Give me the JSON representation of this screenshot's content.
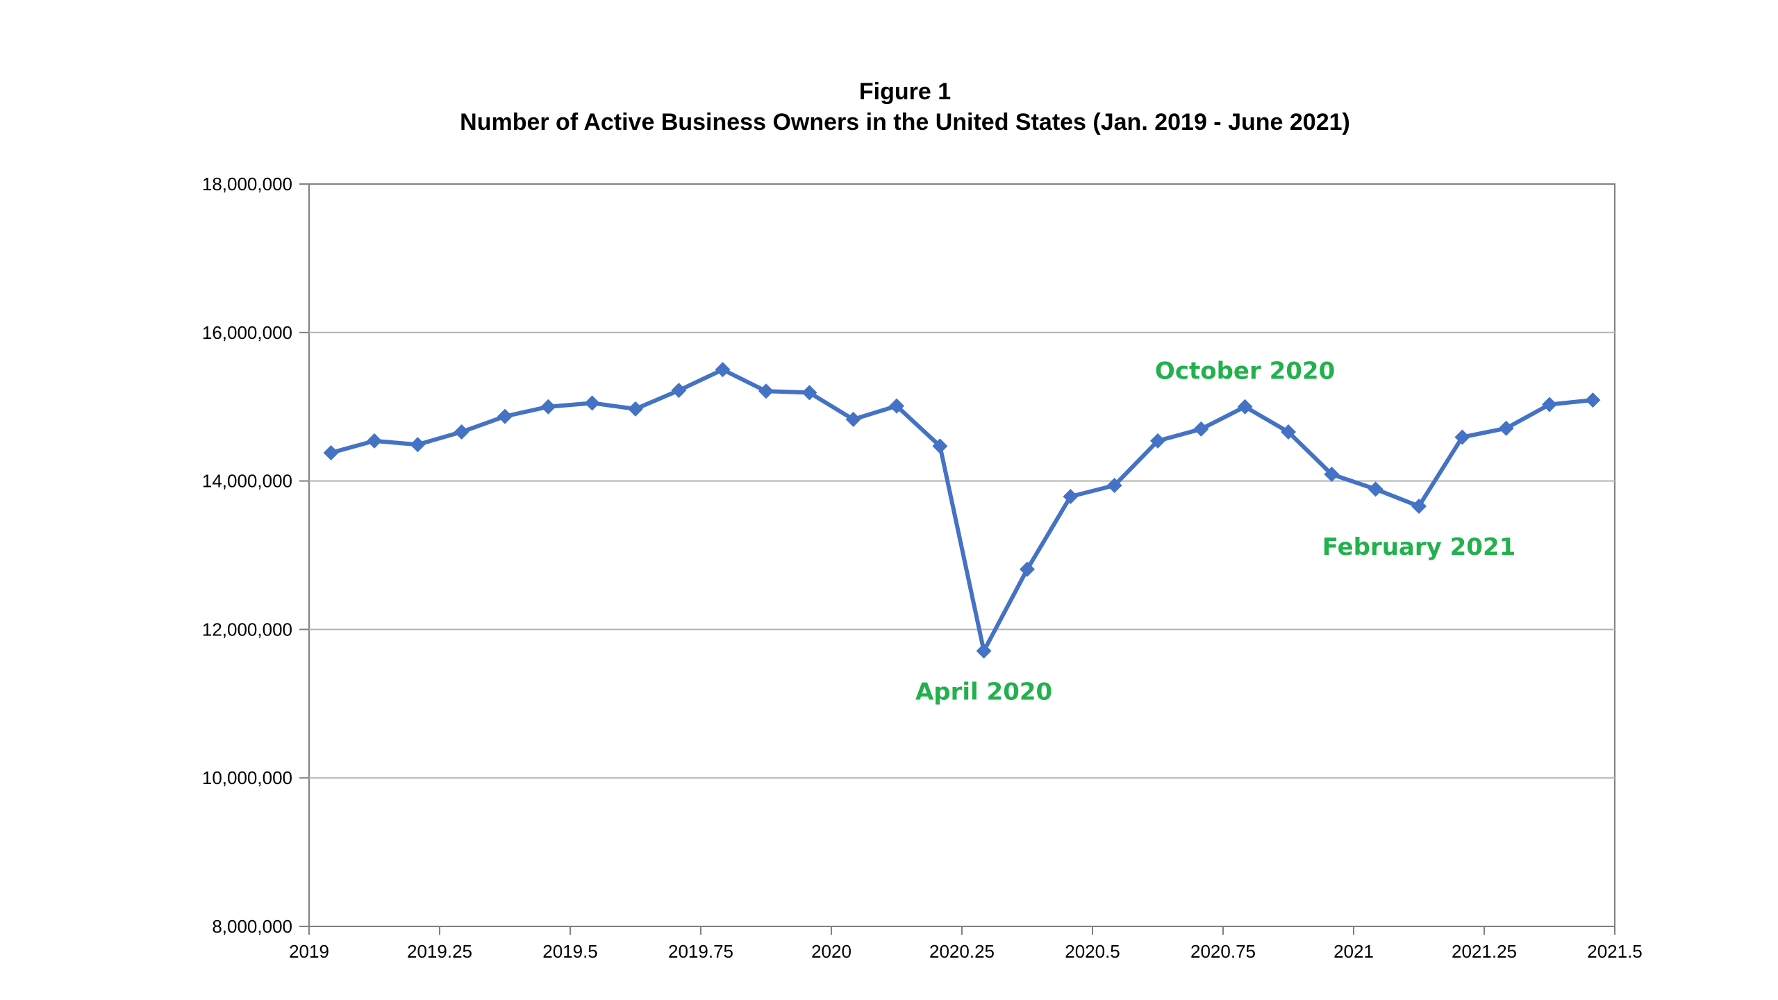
{
  "chart_data": {
    "type": "line",
    "title": "Figure 1",
    "subtitle": "Number of Active Business Owners in the United States (Jan. 2019 - June 2021)",
    "xlabel": "",
    "ylabel": "",
    "xlim": [
      2019,
      2021.5
    ],
    "ylim": [
      8000000,
      18000000
    ],
    "x_ticks": [
      2019,
      2019.25,
      2019.5,
      2019.75,
      2020,
      2020.25,
      2020.5,
      2020.75,
      2021,
      2021.25,
      2021.5
    ],
    "x_tick_labels": [
      "2019",
      "2019.25",
      "2019.5",
      "2019.75",
      "2020",
      "2020.25",
      "2020.5",
      "2020.75",
      "2021",
      "2021.25",
      "2021.5"
    ],
    "y_ticks": [
      8000000,
      10000000,
      12000000,
      14000000,
      16000000,
      18000000
    ],
    "y_tick_labels": [
      "8,000,000",
      "10,000,000",
      "12,000,000",
      "14,000,000",
      "16,000,000",
      "18,000,000"
    ],
    "grid": "horizontal",
    "series": [
      {
        "color": "#4472c4",
        "marker": "diamond",
        "x": [
          2019.042,
          2019.125,
          2019.208,
          2019.292,
          2019.375,
          2019.458,
          2019.542,
          2019.625,
          2019.708,
          2019.792,
          2019.875,
          2019.958,
          2020.042,
          2020.125,
          2020.208,
          2020.292,
          2020.375,
          2020.458,
          2020.542,
          2020.625,
          2020.708,
          2020.792,
          2020.875,
          2020.958,
          2021.042,
          2021.125,
          2021.208,
          2021.292,
          2021.375,
          2021.458
        ],
        "values": [
          14380000,
          14540000,
          14490000,
          14660000,
          14870000,
          15000000,
          15050000,
          14970000,
          15220000,
          15500000,
          15210000,
          15190000,
          14830000,
          15010000,
          14470000,
          11710000,
          12810000,
          13790000,
          13940000,
          14540000,
          14700000,
          15000000,
          14660000,
          14090000,
          13890000,
          13660000,
          14590000,
          14710000,
          15030000,
          15090000
        ]
      }
    ],
    "annotations": [
      {
        "text": "April 2020",
        "x": 2020.292,
        "y": 11710000,
        "position": "below"
      },
      {
        "text": "October 2020",
        "x": 2020.792,
        "y": 15000000,
        "position": "above"
      },
      {
        "text": "February 2021",
        "x": 2021.125,
        "y": 13660000,
        "position": "below"
      }
    ],
    "colors": {
      "line": "#4472c4",
      "annotation": "#22b14c",
      "grid": "#b3b3b3",
      "axis": "#808080"
    }
  }
}
